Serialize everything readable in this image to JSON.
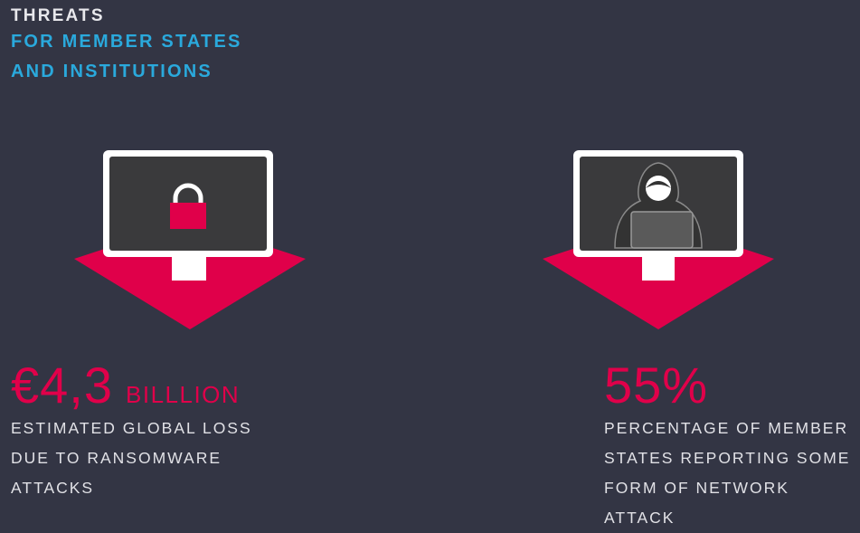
{
  "title": {
    "line1": "THREATS",
    "line2": "FOR MEMBER STATES",
    "line3": "AND INSTITUTIONS"
  },
  "colors": {
    "background": "#333544",
    "accent": "#e0004a",
    "title_blue": "#2aa9dc",
    "text": "#e1e1e6"
  },
  "stats": [
    {
      "icon": "locked-monitor-icon",
      "value": "€4,3",
      "unit": "BILLLION",
      "description_lines": [
        "ESTIMATED GLOBAL LOSS",
        "DUE TO RANSOMWARE",
        "ATTACKS"
      ]
    },
    {
      "icon": "hacker-monitor-icon",
      "value": "55%",
      "unit": "",
      "description_lines": [
        "PERCENTAGE OF MEMBER",
        "STATES REPORTING SOME",
        "FORM OF NETWORK",
        "ATTACK"
      ]
    }
  ]
}
